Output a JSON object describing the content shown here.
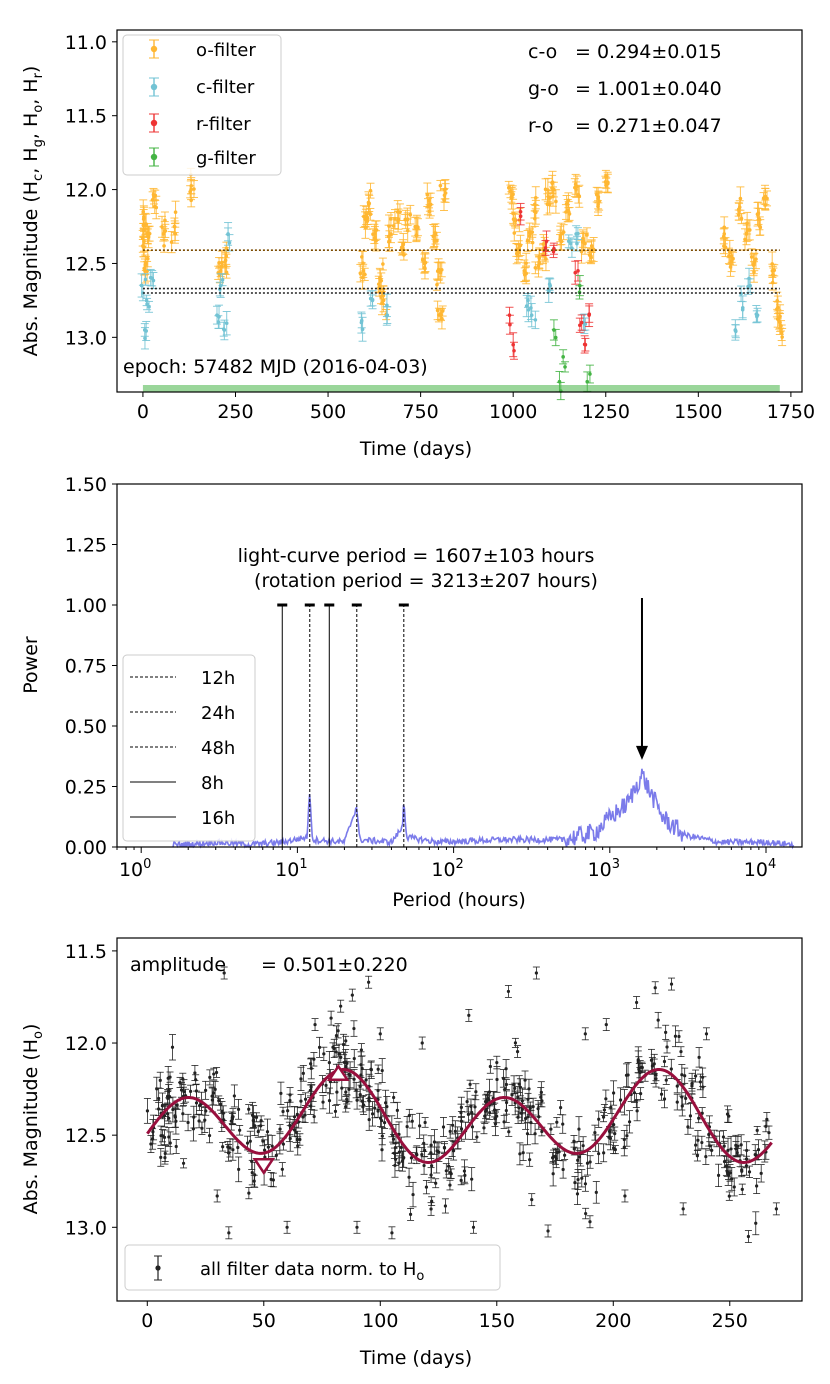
{
  "chart_data": [
    {
      "type": "scatter",
      "panel": "top",
      "ylabel": "Abs. Magnitude (H_c, H_g, H_o, H_r)",
      "xlabel": "Time (days)",
      "xlim": [
        -70,
        1780
      ],
      "ylim": [
        13.37,
        10.92
      ],
      "x_ticks": [
        0,
        250,
        500,
        750,
        1000,
        1250,
        1500,
        1750
      ],
      "y_ticks": [
        11.0,
        11.5,
        12.0,
        12.5,
        13.0
      ],
      "legend": [
        {
          "label": "o-filter",
          "color": "#ffb732"
        },
        {
          "label": "c-filter",
          "color": "#72c3d4"
        },
        {
          "label": "r-filter",
          "color": "#ee3333"
        },
        {
          "label": "g-filter",
          "color": "#44b444"
        }
      ],
      "colors_text": [
        {
          "label": "c-o",
          "value": "= 0.294±0.015"
        },
        {
          "label": "g-o",
          "value": "= 1.001±0.040"
        },
        {
          "label": "r-o",
          "value": "= 0.271±0.047"
        }
      ],
      "epoch_label": "epoch: 57482 MJD (2016-04-03)",
      "reference_lines": [
        12.41,
        12.67,
        12.7
      ],
      "shaded_band": {
        "from": 12.59,
        "to": 12.78,
        "color": "#f4a5a5"
      },
      "bottom_band": {
        "x_start": 0,
        "x_end": 1720,
        "color": "#9ad69a"
      },
      "series": [
        {
          "name": "o-filter",
          "color": "#ffb732",
          "points": [
            [
              2,
              12.2
            ],
            [
              3,
              12.35
            ],
            [
              8,
              12.5
            ],
            [
              15,
              12.3
            ],
            [
              30,
              12.05
            ],
            [
              55,
              12.3
            ],
            [
              85,
              12.25
            ],
            [
              130,
              12.0
            ],
            [
              210,
              12.55
            ],
            [
              225,
              12.45
            ],
            [
              595,
              12.55
            ],
            [
              600,
              12.2
            ],
            [
              610,
              12.1
            ],
            [
              625,
              12.3
            ],
            [
              640,
              12.6
            ],
            [
              650,
              12.75
            ],
            [
              670,
              12.3
            ],
            [
              690,
              12.2
            ],
            [
              700,
              12.4
            ],
            [
              715,
              12.2
            ],
            [
              740,
              12.25
            ],
            [
              760,
              12.5
            ],
            [
              775,
              12.1
            ],
            [
              790,
              12.3
            ],
            [
              800,
              12.55
            ],
            [
              805,
              12.85
            ],
            [
              815,
              12.0
            ],
            [
              995,
              12.05
            ],
            [
              1005,
              12.2
            ],
            [
              1015,
              12.4
            ],
            [
              1030,
              12.55
            ],
            [
              1045,
              12.3
            ],
            [
              1060,
              12.15
            ],
            [
              1070,
              12.5
            ],
            [
              1085,
              12.4
            ],
            [
              1095,
              12.05
            ],
            [
              1110,
              12.0
            ],
            [
              1130,
              12.3
            ],
            [
              1150,
              12.15
            ],
            [
              1170,
              12.0
            ],
            [
              1190,
              12.35
            ],
            [
              1210,
              12.45
            ],
            [
              1230,
              12.05
            ],
            [
              1255,
              11.95
            ],
            [
              1570,
              12.3
            ],
            [
              1590,
              12.45
            ],
            [
              1610,
              12.15
            ],
            [
              1630,
              12.3
            ],
            [
              1650,
              12.5
            ],
            [
              1665,
              12.2
            ],
            [
              1680,
              12.05
            ],
            [
              1700,
              12.55
            ],
            [
              1715,
              12.8
            ],
            [
              1720,
              12.9
            ]
          ]
        },
        {
          "name": "c-filter",
          "color": "#72c3d4",
          "points": [
            [
              0,
              12.7
            ],
            [
              5,
              12.95
            ],
            [
              10,
              12.75
            ],
            [
              25,
              12.6
            ],
            [
              200,
              12.85
            ],
            [
              210,
              12.65
            ],
            [
              220,
              12.95
            ],
            [
              230,
              12.3
            ],
            [
              590,
              12.9
            ],
            [
              620,
              12.75
            ],
            [
              660,
              12.85
            ],
            [
              1040,
              12.75
            ],
            [
              1050,
              12.85
            ],
            [
              1100,
              12.65
            ],
            [
              1150,
              12.35
            ],
            [
              1170,
              12.3
            ],
            [
              1190,
              12.9
            ],
            [
              1600,
              12.95
            ],
            [
              1620,
              12.8
            ],
            [
              1640,
              12.65
            ],
            [
              1660,
              12.85
            ]
          ]
        },
        {
          "name": "r-filter",
          "color": "#ee3333",
          "points": [
            [
              990,
              12.85
            ],
            [
              1000,
              13.05
            ],
            [
              1020,
              12.15
            ],
            [
              1090,
              12.35
            ],
            [
              1110,
              12.4
            ],
            [
              1175,
              12.55
            ],
            [
              1185,
              12.9
            ],
            [
              1195,
              13.05
            ],
            [
              1205,
              12.85
            ]
          ]
        },
        {
          "name": "g-filter",
          "color": "#44b444",
          "points": [
            [
              1110,
              12.95
            ],
            [
              1125,
              13.3
            ],
            [
              1140,
              13.2
            ],
            [
              1200,
              13.3
            ],
            [
              1180,
              12.65
            ]
          ]
        }
      ]
    },
    {
      "type": "line",
      "panel": "middle",
      "xscale": "log",
      "xlabel": "Period (hours)",
      "ylabel": "Power",
      "xlim": [
        0.7,
        17000
      ],
      "ylim": [
        0,
        1.5
      ],
      "x_ticks": [
        {
          "value": 1,
          "base": "10",
          "exp": "0"
        },
        {
          "value": 10,
          "base": "10",
          "exp": "1"
        },
        {
          "value": 100,
          "base": "10",
          "exp": "2"
        },
        {
          "value": 1000,
          "base": "10",
          "exp": "3"
        },
        {
          "value": 10000,
          "base": "10",
          "exp": "4"
        }
      ],
      "y_ticks": [
        "0.00",
        "0.25",
        "0.50",
        "0.75",
        "1.00",
        "1.25",
        "1.50"
      ],
      "legend": [
        {
          "label": "12h",
          "style": "dashed"
        },
        {
          "label": "24h",
          "style": "dashed"
        },
        {
          "label": "48h",
          "style": "dashed"
        },
        {
          "label": "8h",
          "style": "solid"
        },
        {
          "label": "16h",
          "style": "solid"
        }
      ],
      "vlines": [
        {
          "hours": 8,
          "style": "solid"
        },
        {
          "hours": 12,
          "style": "dashed"
        },
        {
          "hours": 16,
          "style": "solid"
        },
        {
          "hours": 24,
          "style": "dashed"
        },
        {
          "hours": 48,
          "style": "dashed"
        }
      ],
      "annotation": {
        "line1": "light-curve period = 1607±103 hours",
        "line2": "(rotation period = 3213±207 hours)",
        "arrow_x_hours": 1607,
        "arrow_tip_power": 0.36
      },
      "series": [
        {
          "name": "periodogram",
          "color": "#7b7bea",
          "points": [
            [
              2,
              0.01
            ],
            [
              3,
              0.02
            ],
            [
              5,
              0.01
            ],
            [
              8,
              0.02
            ],
            [
              11.5,
              0.04
            ],
            [
              12,
              0.23
            ],
            [
              12.5,
              0.03
            ],
            [
              20,
              0.02
            ],
            [
              24,
              0.17
            ],
            [
              25,
              0.03
            ],
            [
              40,
              0.02
            ],
            [
              47,
              0.08
            ],
            [
              48,
              0.2
            ],
            [
              50,
              0.04
            ],
            [
              80,
              0.02
            ],
            [
              200,
              0.03
            ],
            [
              500,
              0.03
            ],
            [
              800,
              0.06
            ],
            [
              1000,
              0.12
            ],
            [
              1300,
              0.18
            ],
            [
              1500,
              0.26
            ],
            [
              1607,
              0.3
            ],
            [
              1800,
              0.23
            ],
            [
              2200,
              0.12
            ],
            [
              3000,
              0.05
            ],
            [
              5000,
              0.02
            ],
            [
              10000,
              0.02
            ],
            [
              15000,
              0.01
            ]
          ]
        }
      ]
    },
    {
      "type": "scatter",
      "panel": "bottom",
      "xlabel": "Time (days)",
      "ylabel": "Abs. Magnitude (H_o)",
      "xlim": [
        -13,
        281
      ],
      "ylim": [
        13.4,
        11.43
      ],
      "x_ticks": [
        0,
        50,
        100,
        150,
        200,
        250
      ],
      "y_ticks": [
        11.5,
        12.0,
        12.5,
        13.0
      ],
      "amplitude_label": "amplitude",
      "amplitude_value": "= 0.501±0.220",
      "legend": [
        {
          "label": "all filter data norm. to H",
          "sub": "o"
        }
      ],
      "model": {
        "color": "#990f3d",
        "mean": 12.44,
        "note": "double-peaked sinusoid fit"
      },
      "model_markers": [
        {
          "x": 50,
          "y": 12.66,
          "shape": "triangle-down"
        },
        {
          "x": 82,
          "y": 12.17,
          "shape": "triangle-up"
        }
      ],
      "series": [
        {
          "name": "all filter data",
          "color": "#222222",
          "points": [
            [
              33,
              11.62
            ],
            [
              72,
              11.9
            ],
            [
              83,
              11.8
            ],
            [
              88,
              11.74
            ],
            [
              95,
              11.67
            ],
            [
              100,
              11.95
            ],
            [
              118,
              12.0
            ],
            [
              138,
              11.85
            ],
            [
              155,
              11.72
            ],
            [
              167,
              11.62
            ],
            [
              188,
              11.95
            ],
            [
              197,
              11.9
            ],
            [
              210,
              11.78
            ],
            [
              218,
              11.7
            ],
            [
              225,
              11.68
            ],
            [
              240,
              11.95
            ],
            [
              30,
              12.83
            ],
            [
              35,
              13.03
            ],
            [
              60,
              13.0
            ],
            [
              90,
              13.0
            ],
            [
              105,
              13.03
            ],
            [
              113,
              12.93
            ],
            [
              140,
              13.0
            ],
            [
              165,
              12.85
            ],
            [
              172,
              13.02
            ],
            [
              190,
              12.97
            ],
            [
              205,
              12.83
            ],
            [
              230,
              12.9
            ],
            [
              258,
              13.05
            ],
            [
              270,
              12.9
            ]
          ]
        }
      ]
    }
  ]
}
